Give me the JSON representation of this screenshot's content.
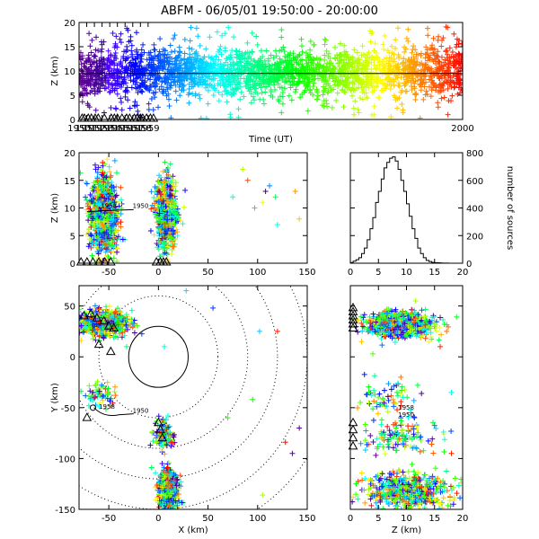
{
  "title": "ABFM - 06/05/01 19:50:00 - 20:00:00",
  "chart_data": [
    {
      "id": "time_height",
      "type": "scatter",
      "xlabel": "Time (UT)",
      "ylabel": "Z (km)",
      "xlim": [
        1950,
        2000
      ],
      "ylim": [
        0,
        20
      ],
      "x_ticks": [
        "1950",
        "1951",
        "1952",
        "1953",
        "1954",
        "1955",
        "1956",
        "1957",
        "1958",
        "1959",
        "2000"
      ],
      "y_ticks": [
        "0",
        "5",
        "10",
        "15",
        "20"
      ],
      "reference_line_z": 9.5,
      "density_profile": [
        {
          "x_frac": 0.0,
          "mean": 8.5,
          "spread": 3.5
        },
        {
          "x_frac": 0.1,
          "mean": 9.5,
          "spread": 3.8
        },
        {
          "x_frac": 0.2,
          "mean": 10.0,
          "spread": 3.5
        },
        {
          "x_frac": 0.35,
          "mean": 9.5,
          "spread": 3.0
        },
        {
          "x_frac": 0.5,
          "mean": 9.5,
          "spread": 3.0
        },
        {
          "x_frac": 0.65,
          "mean": 9.5,
          "spread": 3.2
        },
        {
          "x_frac": 0.8,
          "mean": 9.5,
          "spread": 3.4
        },
        {
          "x_frac": 1.0,
          "mean": 10.0,
          "spread": 3.8
        }
      ],
      "ground_triangles_x": [
        1950.4,
        1950.7,
        1951.2,
        1951.6,
        1952.1,
        1952.5,
        1953.3,
        1954.2,
        1954.6,
        1955.0,
        1955.6,
        1956.2,
        1956.6,
        1957.2,
        1957.6,
        1958.0,
        1958.3,
        1958.8,
        1959.3,
        1959.7
      ]
    },
    {
      "id": "x_height",
      "type": "scatter",
      "xlabel": "",
      "ylabel": "Z (km)",
      "xlim": [
        -80,
        150
      ],
      "ylim": [
        0,
        20
      ],
      "x_ticks": [
        "-50",
        "0",
        "50",
        "100",
        "150"
      ],
      "y_ticks": [
        "0",
        "5",
        "10",
        "15",
        "20"
      ],
      "clusters": [
        {
          "x": -55,
          "x_sd": 7,
          "z": 9,
          "z_sd": 3.5,
          "n": 900
        },
        {
          "x": 8,
          "x_sd": 5,
          "z": 9,
          "z_sd": 3.3,
          "n": 650
        }
      ],
      "outliers": [
        [
          75,
          12
        ],
        [
          90,
          15
        ],
        [
          105,
          11
        ],
        [
          108,
          13
        ],
        [
          112,
          14
        ],
        [
          118,
          12
        ],
        [
          120,
          7
        ],
        [
          138,
          13
        ],
        [
          142,
          8
        ],
        [
          85,
          17
        ],
        [
          97,
          10
        ]
      ],
      "path_labels": [
        "1958",
        "1950"
      ]
    },
    {
      "id": "height_histogram",
      "type": "bar",
      "xlabel": "",
      "ylabel": "number of sources",
      "xlim": [
        0,
        20
      ],
      "ylim": [
        0,
        800
      ],
      "x_ticks": [
        "0",
        "5",
        "10",
        "15",
        "20"
      ],
      "y_ticks": [
        "0",
        "200",
        "400",
        "600",
        "800"
      ],
      "bin_width": 0.5,
      "bin_starts": [
        0,
        0.5,
        1,
        1.5,
        2,
        2.5,
        3,
        3.5,
        4,
        4.5,
        5,
        5.5,
        6,
        6.5,
        7,
        7.5,
        8,
        8.5,
        9,
        9.5,
        10,
        10.5,
        11,
        11.5,
        12,
        12.5,
        13,
        13.5,
        14,
        14.5,
        15,
        15.5,
        16,
        16.5,
        17,
        17.5
      ],
      "values": [
        5,
        15,
        25,
        40,
        70,
        110,
        170,
        250,
        330,
        440,
        520,
        610,
        690,
        730,
        760,
        770,
        740,
        680,
        600,
        520,
        430,
        340,
        250,
        180,
        110,
        70,
        40,
        20,
        12,
        6,
        4,
        3,
        2,
        1,
        1,
        0
      ]
    },
    {
      "id": "plan_view",
      "type": "scatter",
      "xlabel": "X (km)",
      "ylabel": "Y (km)",
      "xlim": [
        -80,
        150
      ],
      "ylim": [
        -150,
        70
      ],
      "x_ticks": [
        "-50",
        "0",
        "50",
        "100",
        "150"
      ],
      "y_ticks": [
        "-150",
        "-100",
        "-50",
        "0",
        "50"
      ],
      "range_ring_radii_km": [
        30,
        60,
        90,
        120,
        150,
        180
      ],
      "clusters": [
        {
          "x": -55,
          "x_sd": 12,
          "y": 33,
          "y_sd": 6,
          "n": 700
        },
        {
          "x": -58,
          "x_sd": 8,
          "y": -38,
          "y_sd": 6,
          "n": 60
        },
        {
          "x": 5,
          "x_sd": 6,
          "y": -75,
          "y_sd": 7,
          "n": 120
        },
        {
          "x": 10,
          "x_sd": 5,
          "y": -130,
          "y_sd": 10,
          "n": 500
        }
      ],
      "outliers": [
        [
          -32,
          10
        ],
        [
          6,
          10
        ],
        [
          28,
          65
        ],
        [
          55,
          48
        ],
        [
          102,
          25
        ],
        [
          120,
          25
        ],
        [
          95,
          -42
        ],
        [
          142,
          -70
        ],
        [
          135,
          -95
        ],
        [
          128,
          -84
        ],
        [
          105,
          -136
        ],
        [
          70,
          -60
        ]
      ],
      "stations": [
        [
          -75,
          40
        ],
        [
          -68,
          42
        ],
        [
          -62,
          38
        ],
        [
          -55,
          35
        ],
        [
          -50,
          30
        ],
        [
          -45,
          28
        ],
        [
          -60,
          12
        ],
        [
          -48,
          5
        ],
        [
          0,
          -65
        ],
        [
          2,
          -72
        ],
        [
          4,
          -80
        ],
        [
          -72,
          -60
        ]
      ],
      "path_labels": [
        "1958",
        "1950"
      ]
    },
    {
      "id": "height_y",
      "type": "scatter",
      "xlabel": "Z (km)",
      "ylabel": "",
      "xlim": [
        0,
        20
      ],
      "ylim": [
        -150,
        70
      ],
      "x_ticks": [
        "0",
        "5",
        "10",
        "15",
        "20"
      ],
      "y_ticks": [
        "-150",
        "-100",
        "-50",
        "0",
        "50"
      ],
      "clusters": [
        {
          "z": 9,
          "z_sd": 3,
          "y": 32,
          "y_sd": 6,
          "n": 750
        },
        {
          "z": 7,
          "z_sd": 2.5,
          "y": -40,
          "y_sd": 10,
          "n": 60
        },
        {
          "z": 9,
          "z_sd": 3,
          "y": -78,
          "y_sd": 8,
          "n": 130
        },
        {
          "z": 10,
          "z_sd": 3.5,
          "y": -132,
          "y_sd": 9,
          "n": 550
        }
      ],
      "outliers": [
        [
          2,
          15
        ],
        [
          4,
          3
        ],
        [
          14,
          15
        ],
        [
          16,
          10
        ],
        [
          9,
          -20
        ],
        [
          12,
          -28
        ],
        [
          18,
          -35
        ],
        [
          18,
          -95
        ]
      ],
      "path_labels": [
        "1958",
        "1950"
      ]
    }
  ]
}
